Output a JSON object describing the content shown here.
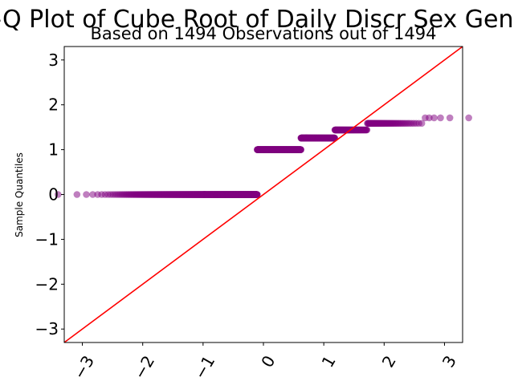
{
  "chart_data": {
    "type": "scatter",
    "title": "Q-Q Plot of Cube Root of Daily Discr Sex Gender",
    "subtitle": "Based on 1494 Observations out of 1494",
    "xlabel": "",
    "ylabel": "Sample Quantiles",
    "xlim": [
      -3.3,
      3.3
    ],
    "ylim": [
      -3.3,
      3.3
    ],
    "xticks": [
      -3,
      -2,
      -1,
      0,
      1,
      2,
      3
    ],
    "xtick_labels": [
      "−3",
      "−2",
      "−1",
      "0",
      "1",
      "2",
      "3"
    ],
    "yticks": [
      -3,
      -2,
      -1,
      0,
      1,
      2,
      3
    ],
    "ytick_labels": [
      "−3",
      "−2",
      "−1",
      "0",
      "1",
      "2",
      "3"
    ],
    "grid": false,
    "reference_line": {
      "slope": 1,
      "intercept": 0,
      "color": "#ff0000"
    },
    "point_color": "#800080",
    "segments": [
      {
        "x_from": -3.19,
        "x_to": 0.02,
        "y": 0.0,
        "count": 686
      },
      {
        "x_from": 0.03,
        "x_to": 0.76,
        "y": 1.0,
        "count": 409
      },
      {
        "x_from": 0.77,
        "x_to": 1.45,
        "y": 1.26,
        "count": 222
      },
      {
        "x_from": 1.46,
        "x_to": 2.09,
        "y": 1.44,
        "count": 113
      },
      {
        "x_from": 2.1,
        "x_to": 2.68,
        "y": 1.587,
        "count": 58
      },
      {
        "x_from": 2.75,
        "x_to": 3.19,
        "y": 1.71,
        "count": 6
      }
    ]
  }
}
